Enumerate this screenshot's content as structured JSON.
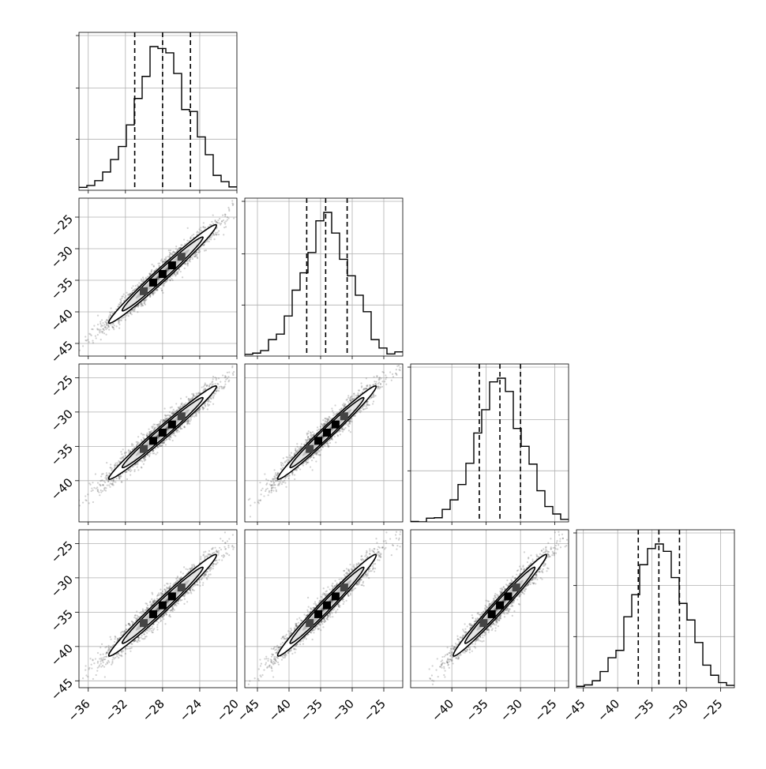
{
  "chart_data": {
    "type": "corner",
    "dimensions": 4,
    "grid": true,
    "parameters": [
      {
        "index": 0,
        "mean": -28.0,
        "sigma": 2.9,
        "q16": -31.0,
        "q50": -28.0,
        "q84": -25.0,
        "range": [
          -37.0,
          -20.0
        ],
        "ticks": [
          -36,
          -32,
          -28,
          -24,
          -20
        ]
      },
      {
        "index": 1,
        "mean": -34.0,
        "sigma": 3.9,
        "q16": -37.2,
        "q50": -34.2,
        "q84": -30.8,
        "range": [
          -47.0,
          -22.0
        ],
        "ticks": [
          -45,
          -40,
          -35,
          -30,
          -25
        ]
      },
      {
        "index": 2,
        "mean": -33.0,
        "sigma": 3.4,
        "q16": -36.0,
        "q50": -33.0,
        "q84": -30.0,
        "range": [
          -46.0,
          -23.0
        ],
        "ticks": [
          -40,
          -35,
          -30,
          -25
        ]
      },
      {
        "index": 3,
        "mean": -34.0,
        "sigma": 3.7,
        "q16": -37.0,
        "q50": -34.0,
        "q84": -31.0,
        "range": [
          -46.0,
          -23.0
        ],
        "ticks": [
          -45,
          -40,
          -35,
          -30,
          -25
        ]
      }
    ],
    "correlation": 0.985,
    "histogram_bins": 20,
    "samples_shown": 2500,
    "contour_levels_sigma": [
      0.5,
      1.0,
      1.5,
      2.0
    ],
    "colors": {
      "line": "#000000",
      "points": "#555555",
      "grid": "#b0b0b0"
    }
  }
}
